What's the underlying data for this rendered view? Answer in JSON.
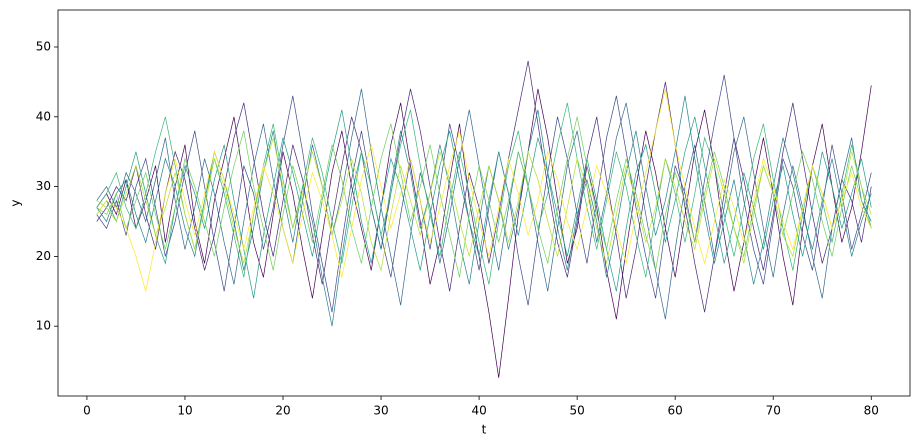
{
  "chart_data": {
    "type": "line",
    "xlabel": "t",
    "ylabel": "y",
    "x": [
      1,
      2,
      3,
      4,
      5,
      6,
      7,
      8,
      9,
      10,
      11,
      12,
      13,
      14,
      15,
      16,
      17,
      18,
      19,
      20,
      21,
      22,
      23,
      24,
      25,
      26,
      27,
      28,
      29,
      30,
      31,
      32,
      33,
      34,
      35,
      36,
      37,
      38,
      39,
      40,
      41,
      42,
      43,
      44,
      45,
      46,
      47,
      48,
      49,
      50,
      51,
      52,
      53,
      54,
      55,
      56,
      57,
      58,
      59,
      60,
      61,
      62,
      63,
      64,
      65,
      66,
      67,
      68,
      69,
      70,
      71,
      72,
      73,
      74,
      75,
      76,
      77,
      78,
      79,
      80
    ],
    "xlim": [
      -2.95,
      83.95
    ],
    "xticks": [
      0,
      10,
      20,
      30,
      40,
      50,
      60,
      70,
      80
    ],
    "ylim": [
      0,
      55.3
    ],
    "yticks": [
      10,
      20,
      30,
      40,
      50
    ],
    "grid": false,
    "series": [
      {
        "color": "#440154",
        "values": [
          27,
          29,
          26,
          31,
          24,
          28,
          33,
          22,
          30,
          36,
          25,
          19,
          28,
          34,
          40,
          31,
          22,
          17,
          26,
          35,
          29,
          21,
          14,
          23,
          32,
          38,
          30,
          24,
          18,
          27,
          36,
          42,
          33,
          25,
          16,
          22,
          31,
          39,
          28,
          20,
          12,
          2.6,
          14,
          26,
          35,
          44,
          37,
          28,
          19,
          24,
          33,
          27,
          18,
          11,
          21,
          30,
          38,
          32,
          24,
          17,
          26,
          35,
          41,
          33,
          23,
          15,
          22,
          30,
          37,
          29,
          20,
          13,
          24,
          33,
          39,
          30,
          22,
          27,
          35,
          44.5
        ]
      },
      {
        "color": "#482878",
        "values": [
          25,
          27,
          30,
          28,
          33,
          26,
          21,
          29,
          35,
          31,
          24,
          18,
          23,
          30,
          37,
          42,
          34,
          26,
          20,
          28,
          36,
          31,
          23,
          16,
          25,
          33,
          40,
          35,
          27,
          21,
          29,
          37,
          44,
          38,
          30,
          22,
          15,
          24,
          32,
          27,
          19,
          26,
          34,
          41,
          48,
          39,
          30,
          22,
          17,
          25,
          34,
          40,
          31,
          23,
          14,
          21,
          30,
          38,
          45,
          36,
          27,
          19,
          12,
          20,
          29,
          37,
          31,
          24,
          18,
          26,
          35,
          42,
          34,
          26,
          19,
          24,
          31,
          28,
          22,
          30
        ]
      },
      {
        "color": "#3e4989",
        "values": [
          26,
          24,
          28,
          23,
          30,
          34,
          27,
          20,
          25,
          32,
          38,
          30,
          22,
          15,
          24,
          33,
          29,
          21,
          27,
          36,
          43,
          35,
          26,
          19,
          12,
          22,
          31,
          38,
          30,
          23,
          17,
          26,
          34,
          28,
          21,
          30,
          39,
          33,
          25,
          18,
          27,
          35,
          29,
          20,
          13,
          23,
          32,
          40,
          34,
          26,
          19,
          28,
          37,
          43,
          35,
          27,
          20,
          14,
          24,
          33,
          29,
          22,
          31,
          39,
          46,
          37,
          28,
          21,
          16,
          25,
          34,
          30,
          23,
          18,
          27,
          36,
          29,
          21,
          26,
          32
        ]
      },
      {
        "color": "#31688e",
        "values": [
          28,
          30,
          27,
          32,
          29,
          25,
          31,
          37,
          28,
          21,
          27,
          34,
          29,
          22,
          16,
          25,
          33,
          39,
          31,
          24,
          19,
          28,
          36,
          30,
          23,
          29,
          37,
          44,
          35,
          27,
          20,
          13,
          23,
          32,
          27,
          19,
          26,
          34,
          41,
          33,
          25,
          18,
          27,
          35,
          30,
          22,
          15,
          24,
          33,
          38,
          30,
          22,
          29,
          37,
          42,
          34,
          26,
          18,
          11,
          21,
          30,
          36,
          28,
          20,
          27,
          35,
          40,
          32,
          24,
          17,
          26,
          33,
          27,
          20,
          14,
          24,
          31,
          37,
          28,
          25
        ]
      },
      {
        "color": "#26828e",
        "values": [
          27,
          25,
          29,
          31,
          26,
          22,
          28,
          34,
          30,
          24,
          20,
          28,
          35,
          31,
          25,
          18,
          24,
          32,
          38,
          29,
          22,
          30,
          25,
          17,
          10,
          20,
          29,
          35,
          27,
          21,
          30,
          38,
          32,
          24,
          29,
          36,
          30,
          22,
          16,
          25,
          33,
          28,
          21,
          27,
          35,
          41,
          32,
          24,
          18,
          26,
          31,
          25,
          17,
          24,
          32,
          38,
          30,
          23,
          28,
          35,
          43,
          34,
          26,
          19,
          25,
          31,
          23,
          16,
          22,
          30,
          37,
          32,
          26,
          21,
          28,
          34,
          27,
          20,
          25,
          29
        ]
      },
      {
        "color": "#1f9e89",
        "values": [
          26,
          28,
          25,
          30,
          35,
          29,
          23,
          19,
          27,
          33,
          29,
          24,
          31,
          36,
          28,
          21,
          14,
          23,
          30,
          37,
          32,
          26,
          20,
          28,
          35,
          41,
          33,
          25,
          19,
          27,
          34,
          30,
          24,
          18,
          26,
          33,
          38,
          31,
          25,
          20,
          28,
          35,
          29,
          23,
          30,
          37,
          32,
          26,
          20,
          27,
          34,
          28,
          21,
          15,
          24,
          32,
          36,
          29,
          22,
          28,
          35,
          40,
          33,
          26,
          19,
          25,
          32,
          27,
          21,
          28,
          33,
          26,
          20,
          27,
          35,
          30,
          24,
          29,
          34,
          27
        ]
      },
      {
        "color": "#35b779",
        "values": [
          27,
          29,
          32,
          27,
          24,
          29,
          35,
          40,
          33,
          26,
          21,
          28,
          34,
          29,
          23,
          17,
          26,
          33,
          39,
          31,
          24,
          30,
          37,
          32,
          25,
          19,
          27,
          35,
          30,
          23,
          29,
          36,
          41,
          33,
          26,
          20,
          28,
          35,
          29,
          22,
          16,
          25,
          33,
          38,
          30,
          24,
          29,
          36,
          42,
          34,
          27,
          21,
          28,
          35,
          30,
          23,
          17,
          26,
          34,
          29,
          22,
          29,
          37,
          33,
          26,
          20,
          27,
          34,
          39,
          31,
          24,
          18,
          26,
          33,
          28,
          22,
          29,
          36,
          30,
          24
        ]
      },
      {
        "color": "#6ece58",
        "values": [
          27,
          26,
          29,
          24,
          28,
          32,
          26,
          21,
          27,
          34,
          30,
          25,
          20,
          27,
          33,
          38,
          30,
          24,
          18,
          26,
          33,
          28,
          22,
          29,
          36,
          31,
          24,
          19,
          27,
          34,
          39,
          32,
          25,
          30,
          36,
          29,
          23,
          17,
          26,
          33,
          28,
          22,
          28,
          35,
          30,
          24,
          19,
          27,
          34,
          40,
          33,
          26,
          21,
          28,
          34,
          29,
          23,
          18,
          26,
          32,
          28,
          22,
          29,
          35,
          30,
          24,
          20,
          27,
          33,
          29,
          23,
          29,
          35,
          31,
          25,
          20,
          27,
          33,
          28,
          24
        ]
      },
      {
        "color": "#b5de2b",
        "values": [
          28,
          27,
          25,
          29,
          33,
          28,
          23,
          27,
          32,
          26,
          21,
          27,
          34,
          30,
          24,
          19,
          26,
          32,
          37,
          30,
          24,
          29,
          35,
          30,
          23,
          28,
          34,
          29,
          22,
          18,
          26,
          33,
          28,
          23,
          29,
          35,
          31,
          25,
          20,
          27,
          33,
          28,
          22,
          28,
          35,
          31,
          25,
          20,
          27,
          34,
          30,
          24,
          19,
          26,
          33,
          28,
          22,
          27,
          34,
          30,
          25,
          21,
          28,
          34,
          29,
          24,
          19,
          26,
          33,
          29,
          23,
          20,
          27,
          33,
          29,
          24,
          28,
          35,
          30,
          26
        ]
      },
      {
        "color": "#fde725",
        "values": [
          26,
          28,
          27,
          24,
          20,
          15,
          22,
          29,
          34,
          28,
          23,
          29,
          35,
          31,
          26,
          21,
          27,
          33,
          29,
          24,
          19,
          26,
          32,
          28,
          23,
          17,
          24,
          31,
          36,
          30,
          24,
          29,
          34,
          28,
          22,
          27,
          33,
          38,
          31,
          25,
          20,
          27,
          34,
          29,
          23,
          28,
          35,
          31,
          25,
          21,
          27,
          33,
          29,
          24,
          19,
          26,
          32,
          38,
          44,
          36,
          30,
          24,
          19,
          25,
          31,
          27,
          22,
          28,
          34,
          30,
          25,
          21,
          27,
          33,
          29,
          24,
          28,
          32,
          27,
          24
        ]
      }
    ]
  }
}
